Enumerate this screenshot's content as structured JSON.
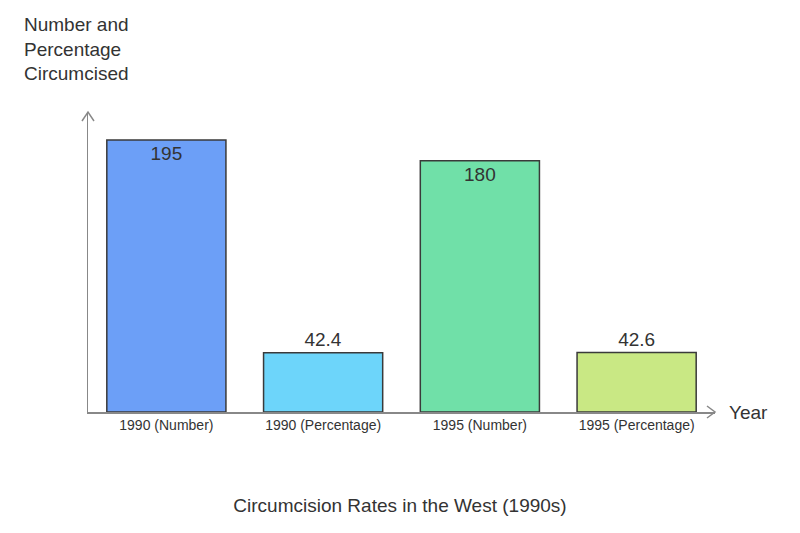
{
  "chart_data": {
    "type": "bar",
    "title": "Circumcision Rates in the West (1990s)",
    "x_label": "Year",
    "y_label": "Number and Percentage Circumcised",
    "categories": [
      "1990 (Number)",
      "1990 (Percentage)",
      "1995 (Number)",
      "1995 (Percentage)"
    ],
    "values": [
      195,
      42.4,
      180,
      42.6
    ],
    "colors": [
      "#6c9ff7",
      "#6dd5fa",
      "#70e0a8",
      "#c9e884"
    ],
    "ylim": [
      0,
      215
    ],
    "yticks": [],
    "grid": false,
    "data_labels": true,
    "tick_labels": "x"
  }
}
